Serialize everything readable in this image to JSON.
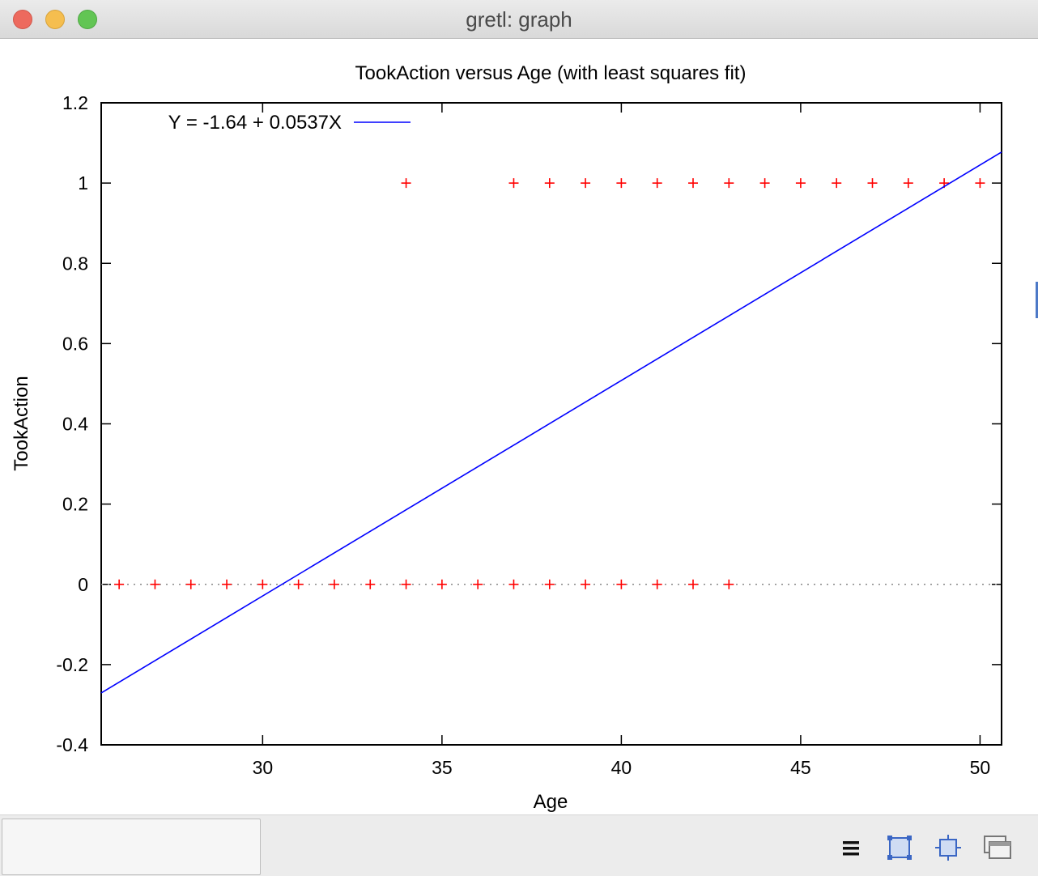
{
  "window": {
    "title": "gretl: graph"
  },
  "chart_data": {
    "type": "scatter",
    "title": "TookAction versus Age (with least squares fit)",
    "xlabel": "Age",
    "ylabel": "TookAction",
    "xlim": [
      25.5,
      50.6
    ],
    "ylim": [
      -0.4,
      1.2
    ],
    "x_ticks": [
      30,
      35,
      40,
      45,
      50
    ],
    "y_ticks": [
      -0.4,
      -0.2,
      0,
      0.2,
      0.4,
      0.6,
      0.8,
      1,
      1.2
    ],
    "grid": false,
    "legend_position": "top-left",
    "series": [
      {
        "marker": "plus",
        "color": "#ff0000",
        "points": [
          [
            26,
            0
          ],
          [
            27,
            0
          ],
          [
            28,
            0
          ],
          [
            29,
            0
          ],
          [
            30,
            0
          ],
          [
            31,
            0
          ],
          [
            32,
            0
          ],
          [
            33,
            0
          ],
          [
            34,
            0
          ],
          [
            35,
            0
          ],
          [
            36,
            0
          ],
          [
            37,
            0
          ],
          [
            38,
            0
          ],
          [
            39,
            0
          ],
          [
            40,
            0
          ],
          [
            41,
            0
          ],
          [
            42,
            0
          ],
          [
            43,
            0
          ],
          [
            34,
            1
          ],
          [
            37,
            1
          ],
          [
            38,
            1
          ],
          [
            39,
            1
          ],
          [
            40,
            1
          ],
          [
            41,
            1
          ],
          [
            42,
            1
          ],
          [
            43,
            1
          ],
          [
            44,
            1
          ],
          [
            45,
            1
          ],
          [
            46,
            1
          ],
          [
            47,
            1
          ],
          [
            48,
            1
          ],
          [
            49,
            1
          ],
          [
            50,
            1
          ]
        ]
      },
      {
        "name": "Y = -1.64 + 0.0537X",
        "type": "line",
        "color": "#0000ff",
        "intercept": -1.64,
        "slope": 0.0537
      }
    ],
    "zero_line": {
      "y": 0,
      "style": "dotted"
    }
  },
  "statusbar": {
    "status_text": "",
    "icons": [
      "menu-icon",
      "zoom-icon",
      "fit-icon",
      "windows-icon"
    ]
  }
}
